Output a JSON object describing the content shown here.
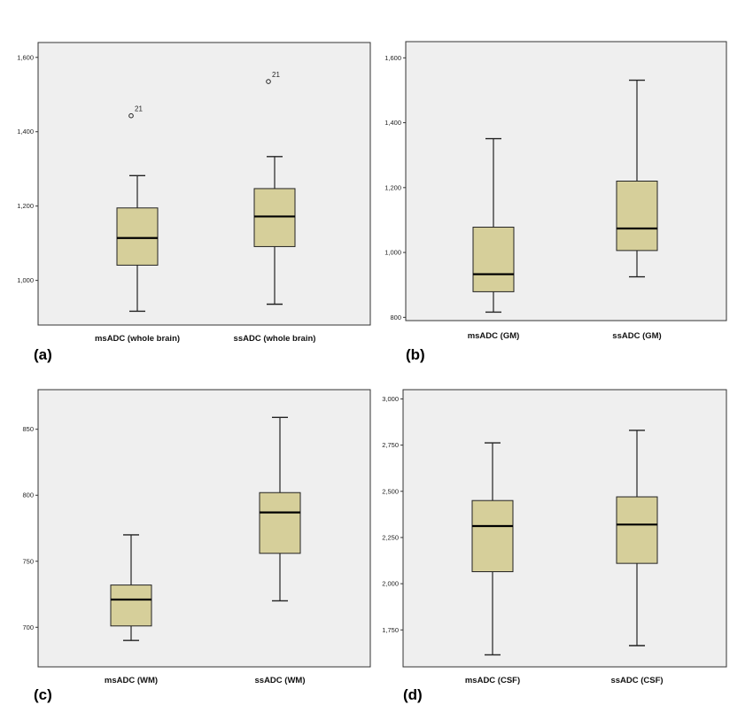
{
  "colors": {
    "plot_background": "#efefef",
    "box_fill": "#d6cf9a",
    "line": "#222222"
  },
  "chart_data": [
    {
      "type": "boxplot",
      "panel_label": "(a)",
      "categories": [
        "msADC (whole brain)",
        "ssADC (whole brain)"
      ],
      "ylim": [
        880,
        1640
      ],
      "yticks": [
        1000,
        1200,
        1400,
        1600
      ],
      "ytick_labels": [
        "1,000",
        "1,200",
        "1,400",
        "1,600"
      ],
      "boxes": [
        {
          "whisker_low": 917,
          "q1": 1041,
          "median": 1114,
          "q3": 1195,
          "whisker_high": 1282,
          "outliers": [
            {
              "value": 1443,
              "label": "21"
            }
          ]
        },
        {
          "whisker_low": 936,
          "q1": 1091,
          "median": 1172,
          "q3": 1247,
          "whisker_high": 1333,
          "outliers": [
            {
              "value": 1535,
              "label": "21"
            }
          ]
        }
      ]
    },
    {
      "type": "boxplot",
      "panel_label": "(b)",
      "categories": [
        "msADC (GM)",
        "ssADC (GM)"
      ],
      "ylim": [
        790,
        1650
      ],
      "yticks": [
        800,
        1000,
        1200,
        1400,
        1600
      ],
      "ytick_labels": [
        "800",
        "1,000",
        "1,200",
        "1,400",
        "1,600"
      ],
      "boxes": [
        {
          "whisker_low": 816,
          "q1": 879,
          "median": 933,
          "q3": 1078,
          "whisker_high": 1351,
          "outliers": []
        },
        {
          "whisker_low": 925,
          "q1": 1006,
          "median": 1074,
          "q3": 1220,
          "whisker_high": 1531,
          "outliers": []
        }
      ]
    },
    {
      "type": "boxplot",
      "panel_label": "(c)",
      "categories": [
        "msADC (WM)",
        "ssADC (WM)"
      ],
      "ylim": [
        670,
        880
      ],
      "yticks": [
        700,
        750,
        800,
        850
      ],
      "ytick_labels": [
        "700",
        "750",
        "800",
        "850"
      ],
      "boxes": [
        {
          "whisker_low": 690,
          "q1": 701,
          "median": 721,
          "q3": 732,
          "whisker_high": 770,
          "outliers": []
        },
        {
          "whisker_low": 720,
          "q1": 756,
          "median": 787,
          "q3": 802,
          "whisker_high": 859,
          "outliers": []
        }
      ]
    },
    {
      "type": "boxplot",
      "panel_label": "(d)",
      "categories": [
        "msADC (CSF)",
        "ssADC (CSF)"
      ],
      "ylim": [
        1550,
        3050
      ],
      "yticks": [
        1750,
        2000,
        2250,
        2500,
        2750,
        3000
      ],
      "ytick_labels": [
        "1,750",
        "2,000",
        "2,250",
        "2,500",
        "2,750",
        "3,000"
      ],
      "boxes": [
        {
          "whisker_low": 1615,
          "q1": 2065,
          "median": 2312,
          "q3": 2450,
          "whisker_high": 2762,
          "outliers": []
        },
        {
          "whisker_low": 1665,
          "q1": 2110,
          "median": 2320,
          "q3": 2470,
          "whisker_high": 2830,
          "outliers": []
        }
      ]
    }
  ]
}
